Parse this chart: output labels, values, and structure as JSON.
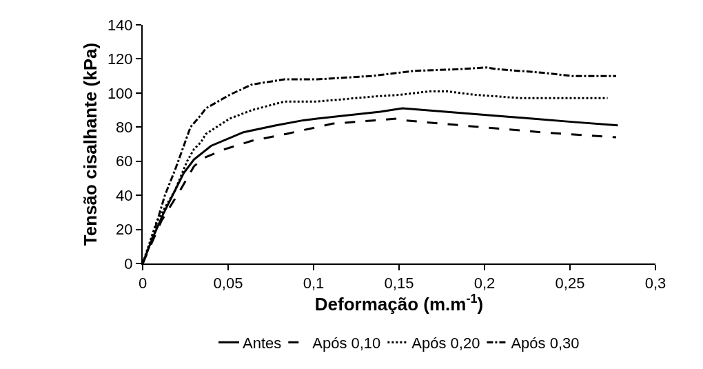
{
  "chart_data": {
    "type": "line",
    "xlabel": "Deformação (m.m$^{-1}$)",
    "ylabel": "Tensão cisalhante (kPa)",
    "xlim": [
      0,
      0.3
    ],
    "xticks": [
      {
        "value": 0,
        "label": "0"
      },
      {
        "value": 0.05,
        "label": "0,05"
      },
      {
        "value": 0.1,
        "label": "0,1"
      },
      {
        "value": 0.15,
        "label": "0,15"
      },
      {
        "value": 0.2,
        "label": "0,2"
      },
      {
        "value": 0.25,
        "label": "0,25"
      },
      {
        "value": 0.3,
        "label": "0,3"
      }
    ],
    "ylim": [
      0,
      140
    ],
    "yticks": [
      0,
      20,
      40,
      60,
      80,
      100,
      120,
      140
    ],
    "legend": "bottom",
    "marker": "none",
    "series": [
      {
        "name": "Antes",
        "color": "#000000",
        "line_style": "solid",
        "x": [
          0,
          0.005,
          0.012,
          0.019,
          0.024,
          0.03,
          0.04,
          0.059,
          0.078,
          0.094,
          0.102,
          0.139,
          0.152,
          0.215,
          0.228,
          0.252,
          0.278
        ],
        "values": [
          0,
          13,
          29,
          43,
          53,
          61,
          69,
          77,
          81,
          84,
          85,
          89,
          91,
          86,
          85,
          83,
          81
        ]
      },
      {
        "name": "Após 0,10",
        "color": "#000000",
        "line_style": "dashed",
        "x": [
          0,
          0.011,
          0.022,
          0.03,
          0.036,
          0.048,
          0.064,
          0.084,
          0.102,
          0.111,
          0.149,
          0.153,
          0.175,
          0.233,
          0.277
        ],
        "values": [
          0,
          25,
          43,
          57,
          62,
          67,
          72,
          76,
          80,
          82,
          85,
          84,
          82,
          77,
          74
        ]
      },
      {
        "name": "Após 0,20",
        "color": "#000000",
        "line_style": "dotted",
        "x": [
          0,
          0.008,
          0.019,
          0.026,
          0.03,
          0.034,
          0.037,
          0.051,
          0.064,
          0.083,
          0.102,
          0.136,
          0.151,
          0.168,
          0.178,
          0.194,
          0.221,
          0.272
        ],
        "values": [
          0,
          24,
          43,
          60,
          67,
          71,
          76,
          85,
          90,
          95,
          95,
          98,
          99,
          101,
          101,
          99,
          97,
          97
        ]
      },
      {
        "name": "Após 0,30",
        "color": "#000000",
        "line_style": "dashdot",
        "x": [
          0,
          0.005,
          0.013,
          0.019,
          0.028,
          0.034,
          0.037,
          0.051,
          0.064,
          0.083,
          0.102,
          0.134,
          0.159,
          0.186,
          0.201,
          0.207,
          0.233,
          0.251,
          0.277
        ],
        "values": [
          0,
          13,
          40,
          55,
          80,
          87,
          91,
          99,
          105,
          108,
          108,
          110,
          113,
          114,
          115,
          114,
          112,
          110,
          110
        ]
      }
    ]
  }
}
